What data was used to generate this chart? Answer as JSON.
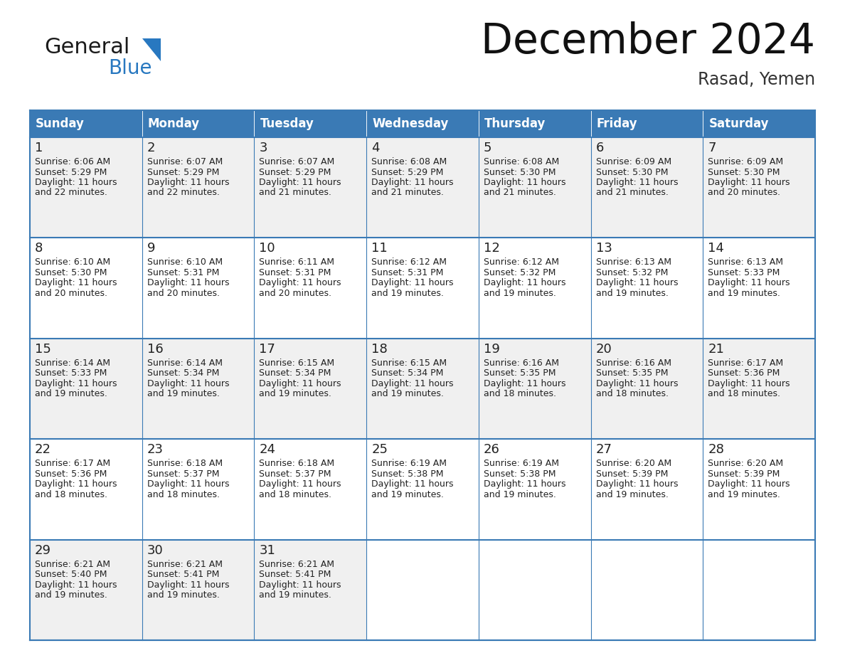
{
  "title": "December 2024",
  "subtitle": "Rasad, Yemen",
  "header_color": "#3a7ab5",
  "header_text_color": "#ffffff",
  "cell_bg_color": "#f0f0f0",
  "alt_cell_bg_color": "#ffffff",
  "day_names": [
    "Sunday",
    "Monday",
    "Tuesday",
    "Wednesday",
    "Thursday",
    "Friday",
    "Saturday"
  ],
  "grid_line_color": "#3a7ab5",
  "text_color": "#222222",
  "logo_general_color": "#1a1a1a",
  "logo_blue_color": "#2878c0",
  "days": [
    {
      "day": 1,
      "col": 0,
      "row": 0,
      "sunrise": "6:06 AM",
      "sunset": "5:29 PM",
      "daylight_hours": 11,
      "daylight_minutes": 22
    },
    {
      "day": 2,
      "col": 1,
      "row": 0,
      "sunrise": "6:07 AM",
      "sunset": "5:29 PM",
      "daylight_hours": 11,
      "daylight_minutes": 22
    },
    {
      "day": 3,
      "col": 2,
      "row": 0,
      "sunrise": "6:07 AM",
      "sunset": "5:29 PM",
      "daylight_hours": 11,
      "daylight_minutes": 21
    },
    {
      "day": 4,
      "col": 3,
      "row": 0,
      "sunrise": "6:08 AM",
      "sunset": "5:29 PM",
      "daylight_hours": 11,
      "daylight_minutes": 21
    },
    {
      "day": 5,
      "col": 4,
      "row": 0,
      "sunrise": "6:08 AM",
      "sunset": "5:30 PM",
      "daylight_hours": 11,
      "daylight_minutes": 21
    },
    {
      "day": 6,
      "col": 5,
      "row": 0,
      "sunrise": "6:09 AM",
      "sunset": "5:30 PM",
      "daylight_hours": 11,
      "daylight_minutes": 21
    },
    {
      "day": 7,
      "col": 6,
      "row": 0,
      "sunrise": "6:09 AM",
      "sunset": "5:30 PM",
      "daylight_hours": 11,
      "daylight_minutes": 20
    },
    {
      "day": 8,
      "col": 0,
      "row": 1,
      "sunrise": "6:10 AM",
      "sunset": "5:30 PM",
      "daylight_hours": 11,
      "daylight_minutes": 20
    },
    {
      "day": 9,
      "col": 1,
      "row": 1,
      "sunrise": "6:10 AM",
      "sunset": "5:31 PM",
      "daylight_hours": 11,
      "daylight_minutes": 20
    },
    {
      "day": 10,
      "col": 2,
      "row": 1,
      "sunrise": "6:11 AM",
      "sunset": "5:31 PM",
      "daylight_hours": 11,
      "daylight_minutes": 20
    },
    {
      "day": 11,
      "col": 3,
      "row": 1,
      "sunrise": "6:12 AM",
      "sunset": "5:31 PM",
      "daylight_hours": 11,
      "daylight_minutes": 19
    },
    {
      "day": 12,
      "col": 4,
      "row": 1,
      "sunrise": "6:12 AM",
      "sunset": "5:32 PM",
      "daylight_hours": 11,
      "daylight_minutes": 19
    },
    {
      "day": 13,
      "col": 5,
      "row": 1,
      "sunrise": "6:13 AM",
      "sunset": "5:32 PM",
      "daylight_hours": 11,
      "daylight_minutes": 19
    },
    {
      "day": 14,
      "col": 6,
      "row": 1,
      "sunrise": "6:13 AM",
      "sunset": "5:33 PM",
      "daylight_hours": 11,
      "daylight_minutes": 19
    },
    {
      "day": 15,
      "col": 0,
      "row": 2,
      "sunrise": "6:14 AM",
      "sunset": "5:33 PM",
      "daylight_hours": 11,
      "daylight_minutes": 19
    },
    {
      "day": 16,
      "col": 1,
      "row": 2,
      "sunrise": "6:14 AM",
      "sunset": "5:34 PM",
      "daylight_hours": 11,
      "daylight_minutes": 19
    },
    {
      "day": 17,
      "col": 2,
      "row": 2,
      "sunrise": "6:15 AM",
      "sunset": "5:34 PM",
      "daylight_hours": 11,
      "daylight_minutes": 19
    },
    {
      "day": 18,
      "col": 3,
      "row": 2,
      "sunrise": "6:15 AM",
      "sunset": "5:34 PM",
      "daylight_hours": 11,
      "daylight_minutes": 19
    },
    {
      "day": 19,
      "col": 4,
      "row": 2,
      "sunrise": "6:16 AM",
      "sunset": "5:35 PM",
      "daylight_hours": 11,
      "daylight_minutes": 18
    },
    {
      "day": 20,
      "col": 5,
      "row": 2,
      "sunrise": "6:16 AM",
      "sunset": "5:35 PM",
      "daylight_hours": 11,
      "daylight_minutes": 18
    },
    {
      "day": 21,
      "col": 6,
      "row": 2,
      "sunrise": "6:17 AM",
      "sunset": "5:36 PM",
      "daylight_hours": 11,
      "daylight_minutes": 18
    },
    {
      "day": 22,
      "col": 0,
      "row": 3,
      "sunrise": "6:17 AM",
      "sunset": "5:36 PM",
      "daylight_hours": 11,
      "daylight_minutes": 18
    },
    {
      "day": 23,
      "col": 1,
      "row": 3,
      "sunrise": "6:18 AM",
      "sunset": "5:37 PM",
      "daylight_hours": 11,
      "daylight_minutes": 18
    },
    {
      "day": 24,
      "col": 2,
      "row": 3,
      "sunrise": "6:18 AM",
      "sunset": "5:37 PM",
      "daylight_hours": 11,
      "daylight_minutes": 18
    },
    {
      "day": 25,
      "col": 3,
      "row": 3,
      "sunrise": "6:19 AM",
      "sunset": "5:38 PM",
      "daylight_hours": 11,
      "daylight_minutes": 19
    },
    {
      "day": 26,
      "col": 4,
      "row": 3,
      "sunrise": "6:19 AM",
      "sunset": "5:38 PM",
      "daylight_hours": 11,
      "daylight_minutes": 19
    },
    {
      "day": 27,
      "col": 5,
      "row": 3,
      "sunrise": "6:20 AM",
      "sunset": "5:39 PM",
      "daylight_hours": 11,
      "daylight_minutes": 19
    },
    {
      "day": 28,
      "col": 6,
      "row": 3,
      "sunrise": "6:20 AM",
      "sunset": "5:39 PM",
      "daylight_hours": 11,
      "daylight_minutes": 19
    },
    {
      "day": 29,
      "col": 0,
      "row": 4,
      "sunrise": "6:21 AM",
      "sunset": "5:40 PM",
      "daylight_hours": 11,
      "daylight_minutes": 19
    },
    {
      "day": 30,
      "col": 1,
      "row": 4,
      "sunrise": "6:21 AM",
      "sunset": "5:41 PM",
      "daylight_hours": 11,
      "daylight_minutes": 19
    },
    {
      "day": 31,
      "col": 2,
      "row": 4,
      "sunrise": "6:21 AM",
      "sunset": "5:41 PM",
      "daylight_hours": 11,
      "daylight_minutes": 19
    }
  ]
}
